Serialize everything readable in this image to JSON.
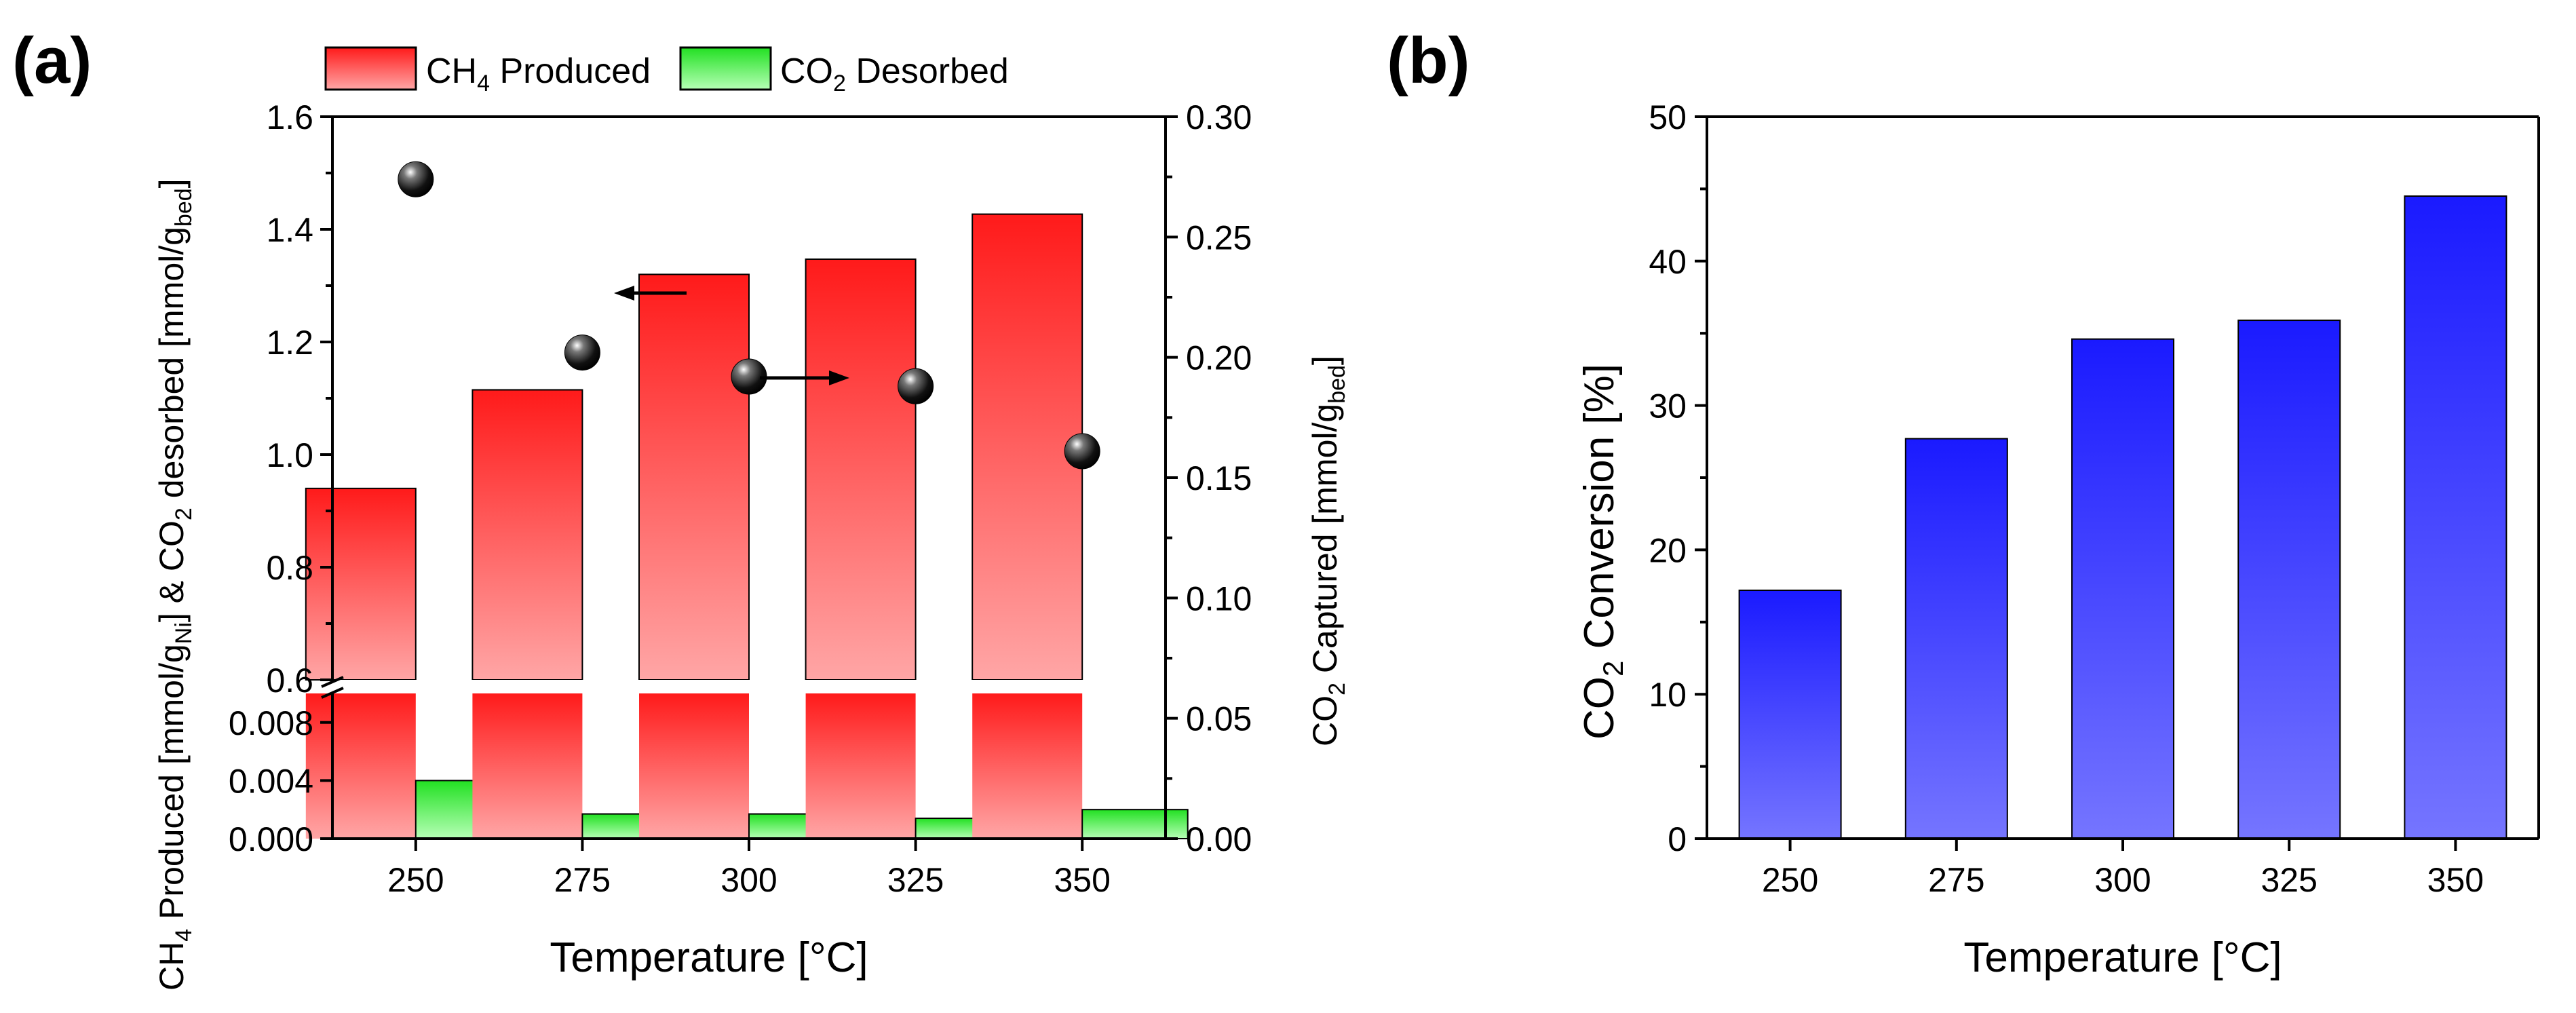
{
  "panel_a": {
    "label": "(a)",
    "legend": {
      "ch4": {
        "base": "CH",
        "sub": "4",
        "rest": " Produced"
      },
      "co2": {
        "base": "CO",
        "sub": "2",
        "rest": " Desorbed"
      }
    },
    "ylabel_left": "CH4 Produced [mmol/gNi] & CO2 desorbed [mmol/gbed]",
    "ylabel_right": "CO2 Captured [mmol/gbed]",
    "xlabel": "Temperature [°C]",
    "ticks_upper": [
      "0.6",
      "0.8",
      "1.0",
      "1.2",
      "1.4",
      "1.6"
    ],
    "ticks_lower": [
      "0.000",
      "0.004",
      "0.008"
    ],
    "ticks_right": [
      "0.00",
      "0.05",
      "0.10",
      "0.15",
      "0.20",
      "0.25",
      "0.30"
    ],
    "colors": {
      "ch4": "#ff1a1a",
      "co2": "#33ee33",
      "marker": "#000000"
    }
  },
  "panel_b": {
    "label": "(b)",
    "ylabel": "CO2 Conversion [%]",
    "xlabel": "Temperature [°C]",
    "ticks": [
      "0",
      "10",
      "20",
      "30",
      "40",
      "50"
    ],
    "colors": {
      "bar": "#1a1aff"
    }
  },
  "chart_data": [
    {
      "type": "bar",
      "title": "(a)",
      "categories": [
        "250",
        "275",
        "300",
        "325",
        "350"
      ],
      "series": [
        {
          "name": "CH4 Produced",
          "axis": "left",
          "values": [
            0.94,
            1.115,
            1.32,
            1.347,
            1.427
          ]
        },
        {
          "name": "CO2 Desorbed",
          "axis": "left",
          "values": [
            0.004,
            0.0017,
            0.0017,
            0.0014,
            0.002
          ]
        },
        {
          "name": "CO2 Captured",
          "axis": "right",
          "type": "scatter",
          "values": [
            0.274,
            0.202,
            0.192,
            0.188,
            0.161
          ]
        }
      ],
      "xlabel": "Temperature [°C]",
      "ylabel": "CH4 Produced [mmol/gNi] & CO2 desorbed [mmol/gbed]",
      "ylabel_right": "CO2 Captured [mmol/gbed]",
      "ylim_upper": [
        0.6,
        1.6
      ],
      "ylim_lower": [
        0,
        0.01
      ],
      "ylim_right": [
        0,
        0.3
      ],
      "legend": "top"
    },
    {
      "type": "bar",
      "title": "(b)",
      "categories": [
        "250",
        "275",
        "300",
        "325",
        "350"
      ],
      "values": [
        17.2,
        27.7,
        34.6,
        35.9,
        44.5
      ],
      "xlabel": "Temperature [°C]",
      "ylabel": "CO2 Conversion [%]",
      "ylim": [
        0,
        50
      ]
    }
  ]
}
